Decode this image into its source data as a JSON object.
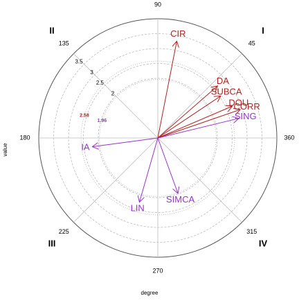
{
  "chart_data": {
    "type": "polar-arrows",
    "x_label": "degree",
    "y_label": "value",
    "quadrant_labels": [
      "I",
      "II",
      "III",
      "IV"
    ],
    "xticks": [
      45,
      90,
      135,
      180,
      225,
      270,
      315,
      360
    ],
    "rlim": [
      0,
      4
    ],
    "rticks": [
      2,
      2.5,
      3,
      3.5
    ],
    "reference_lines": [
      {
        "value": 2.58,
        "color": "#b22222"
      },
      {
        "value": 1.96,
        "color": "#9932cc"
      }
    ],
    "categories": [
      "CIR",
      "DA",
      "SUBCA",
      "DOU",
      "CORR",
      "SING",
      "IA",
      "LIN",
      "SIMCA"
    ],
    "angles": [
      78.9,
      41,
      33.7,
      23.1,
      19,
      13.6,
      187.6,
      254,
      290
    ],
    "values": [
      3.31,
      2.66,
      2.54,
      2.72,
      2.93,
      2.8,
      2.22,
      2.24,
      1.98
    ],
    "colors": [
      "#b22222",
      "#b22222",
      "#b22222",
      "#b22222",
      "#b22222",
      "#9932cc",
      "#9932cc",
      "#9932cc",
      "#9932cc"
    ]
  }
}
